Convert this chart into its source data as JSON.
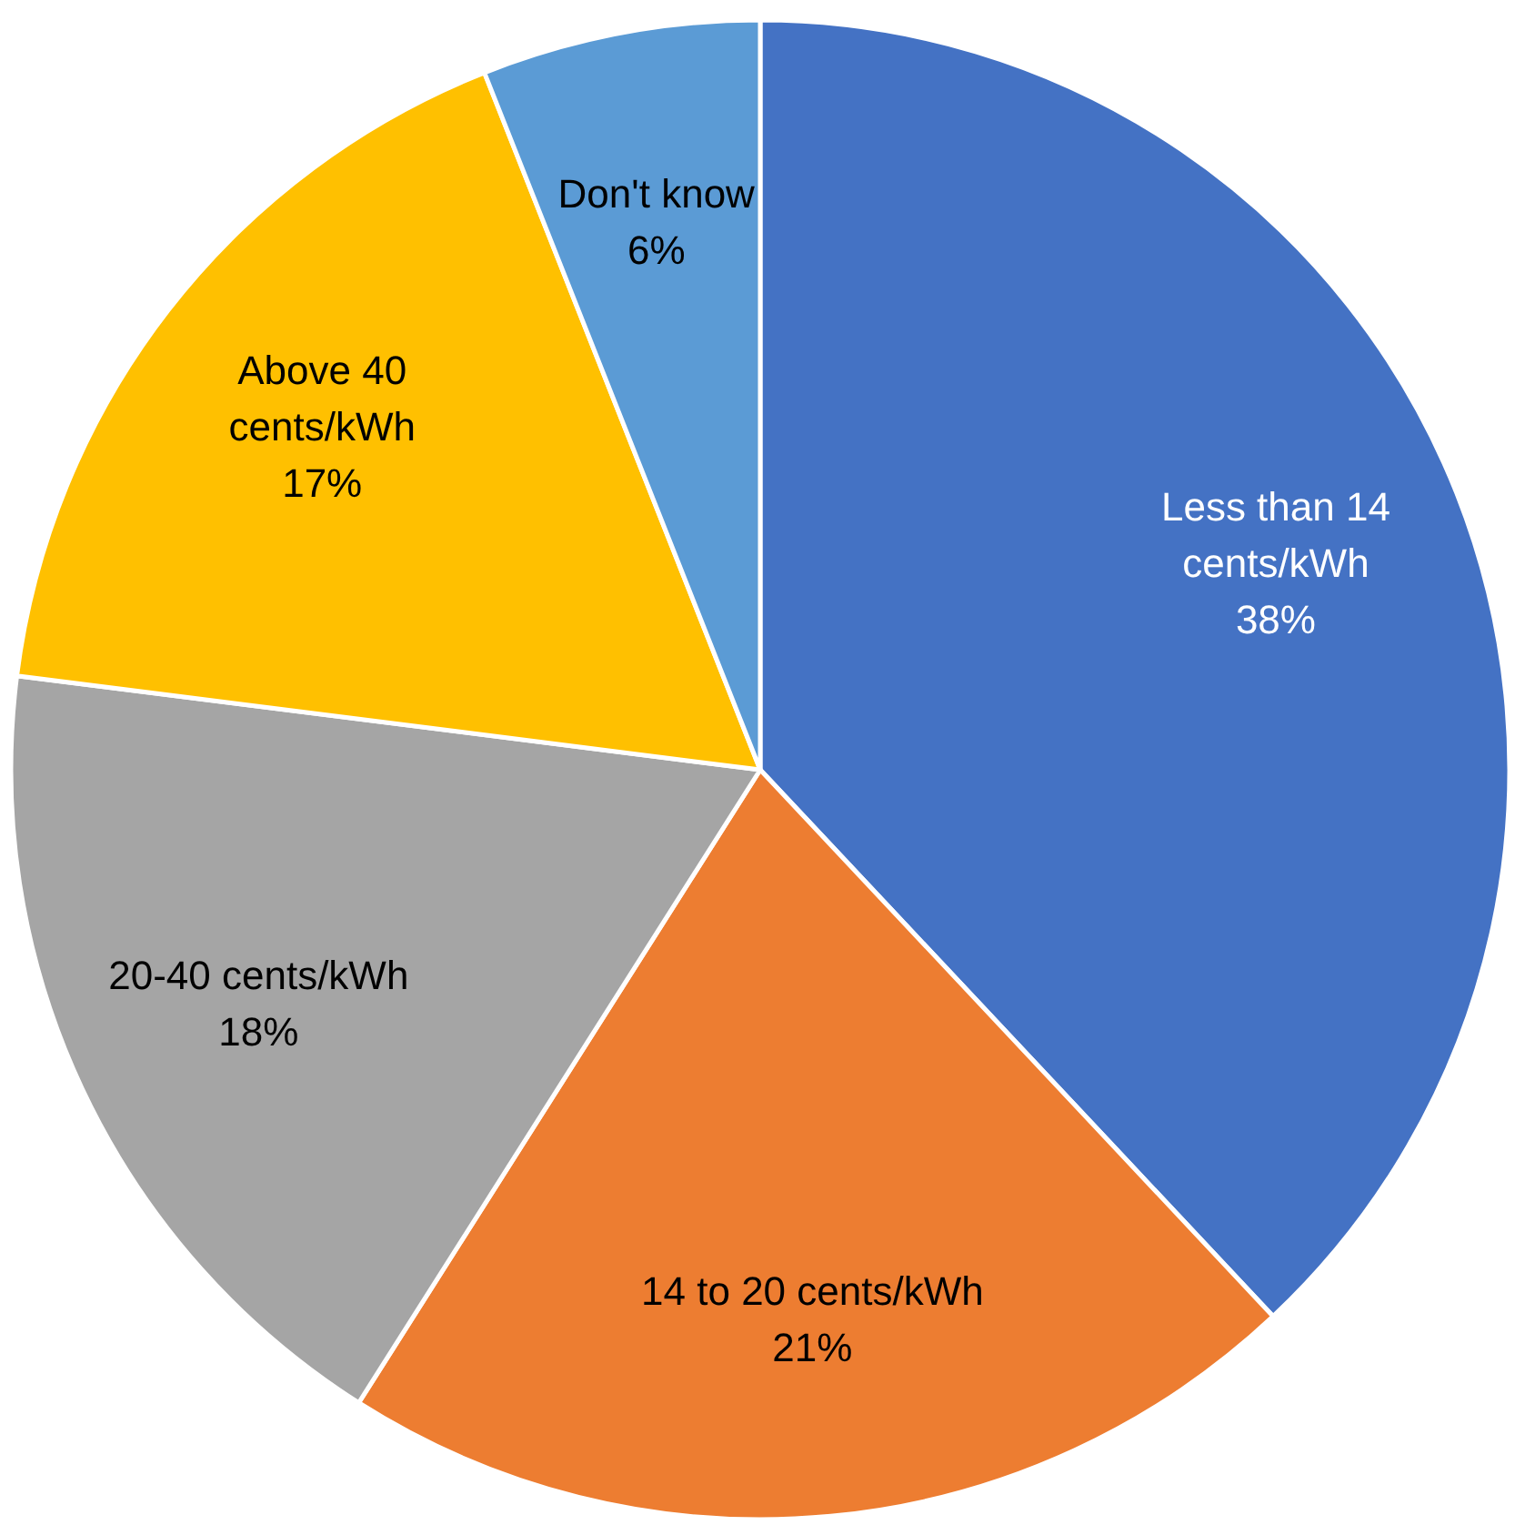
{
  "chart_data": {
    "type": "pie",
    "categories": [
      "Less than 14\ncents/kWh",
      "14 to 20 cents/kWh",
      "20-40 cents/kWh",
      "Above 40\ncents/kWh",
      "Don't know"
    ],
    "values": [
      38,
      21,
      18,
      17,
      6
    ],
    "colors": [
      "#4472c4",
      "#ed7d31",
      "#a5a5a5",
      "#ffc000",
      "#5b9bd5"
    ],
    "value_labels": [
      "38%",
      "21%",
      "18%",
      "17%",
      "6%"
    ]
  }
}
